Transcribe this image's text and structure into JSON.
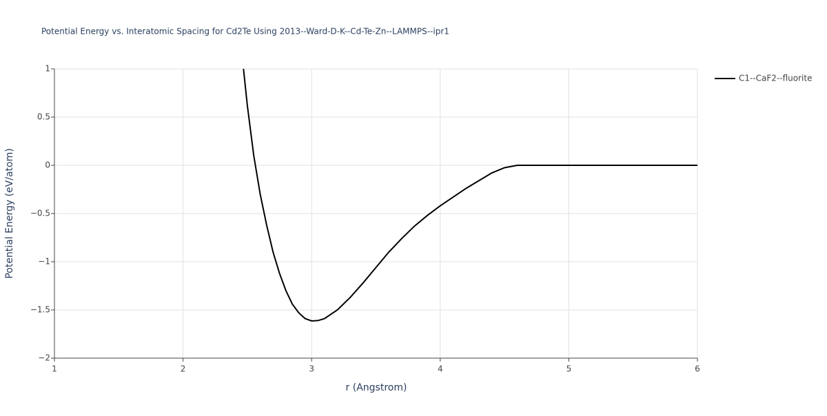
{
  "chart_data": {
    "type": "line",
    "title": "Potential Energy vs. Interatomic Spacing for Cd2Te Using 2013--Ward-D-K--Cd-Te-Zn--LAMMPS--ipr1",
    "xlabel": "r (Angstrom)",
    "ylabel": "Potential Energy (eV/atom)",
    "x": [
      2.47,
      2.5,
      2.55,
      2.6,
      2.65,
      2.7,
      2.75,
      2.8,
      2.85,
      2.9,
      2.95,
      3.0,
      3.05,
      3.1,
      3.2,
      3.3,
      3.4,
      3.5,
      3.6,
      3.7,
      3.8,
      3.9,
      4.0,
      4.1,
      4.2,
      4.3,
      4.4,
      4.5,
      4.6,
      5.0,
      5.5,
      6.0
    ],
    "series": [
      {
        "name": "C1--CaF2--fluorite",
        "color": "#000000",
        "values": [
          1.0,
          0.62,
          0.1,
          -0.3,
          -0.62,
          -0.9,
          -1.12,
          -1.3,
          -1.44,
          -1.53,
          -1.59,
          -1.614,
          -1.61,
          -1.59,
          -1.5,
          -1.37,
          -1.22,
          -1.06,
          -0.9,
          -0.76,
          -0.63,
          -0.52,
          -0.42,
          -0.33,
          -0.24,
          -0.16,
          -0.08,
          -0.025,
          0,
          0,
          0,
          0
        ]
      }
    ],
    "xlim": [
      1,
      6
    ],
    "xticks": [
      1,
      2,
      3,
      4,
      5,
      6
    ],
    "ylim": [
      -2,
      1
    ],
    "yticks": [
      {
        "value": -2,
        "label": "−2"
      },
      {
        "value": -1.5,
        "label": "−1.5"
      },
      {
        "value": -1,
        "label": "−1"
      },
      {
        "value": -0.5,
        "label": "−0.5"
      },
      0,
      0.5,
      1
    ],
    "grid": true
  }
}
